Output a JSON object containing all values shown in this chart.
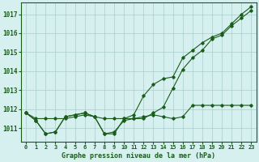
{
  "title": "Graphe pression niveau de la mer (hPa)",
  "background_color": "#d6f0f0",
  "grid_color": "#aacccc",
  "line_color": "#1a5c1a",
  "marker_color": "#1a5c1a",
  "xlim": [
    -0.5,
    23.5
  ],
  "ylim": [
    1010.3,
    1017.6
  ],
  "xticks": [
    0,
    1,
    2,
    3,
    4,
    5,
    6,
    7,
    8,
    9,
    10,
    11,
    12,
    13,
    14,
    15,
    16,
    17,
    18,
    19,
    20,
    21,
    22,
    23
  ],
  "yticks": [
    1011,
    1012,
    1013,
    1014,
    1015,
    1016,
    1017
  ],
  "series1_x": [
    0,
    1,
    2,
    3,
    4,
    5,
    6,
    7,
    8,
    9,
    10,
    11,
    12,
    13,
    14,
    15,
    16,
    17,
    18,
    19,
    20,
    21,
    22,
    23
  ],
  "series1_y": [
    1011.8,
    1011.5,
    1011.5,
    1011.5,
    1011.5,
    1011.6,
    1011.7,
    1011.6,
    1011.5,
    1011.5,
    1011.5,
    1011.5,
    1011.5,
    1011.8,
    1012.1,
    1013.1,
    1014.1,
    1014.7,
    1015.1,
    1015.7,
    1015.9,
    1016.4,
    1016.8,
    1017.2
  ],
  "series2_x": [
    0,
    1,
    2,
    3,
    4,
    5,
    6,
    7,
    8,
    9,
    10,
    11,
    12,
    13,
    14,
    15,
    16,
    17,
    18,
    19,
    20,
    21,
    22,
    23
  ],
  "series2_y": [
    1011.8,
    1011.4,
    1010.7,
    1010.8,
    1011.6,
    1011.7,
    1011.8,
    1011.6,
    1010.7,
    1010.8,
    1011.4,
    1011.5,
    1011.6,
    1011.7,
    1011.6,
    1011.5,
    1011.6,
    1012.2,
    1012.2,
    1012.2,
    1012.2,
    1012.2,
    1012.2,
    1012.2
  ],
  "series3_x": [
    0,
    1,
    2,
    3,
    4,
    5,
    6,
    7,
    8,
    9,
    10,
    11,
    12,
    13,
    14,
    15,
    16,
    17,
    18,
    19,
    20,
    21,
    22,
    23
  ],
  "series3_y": [
    1011.8,
    1011.4,
    1010.7,
    1010.8,
    1011.6,
    1011.7,
    1011.8,
    1011.6,
    1010.7,
    1010.7,
    1011.5,
    1011.7,
    1012.7,
    1013.3,
    1013.6,
    1013.7,
    1014.7,
    1015.1,
    1015.5,
    1015.8,
    1016.0,
    1016.5,
    1017.0,
    1017.4
  ]
}
